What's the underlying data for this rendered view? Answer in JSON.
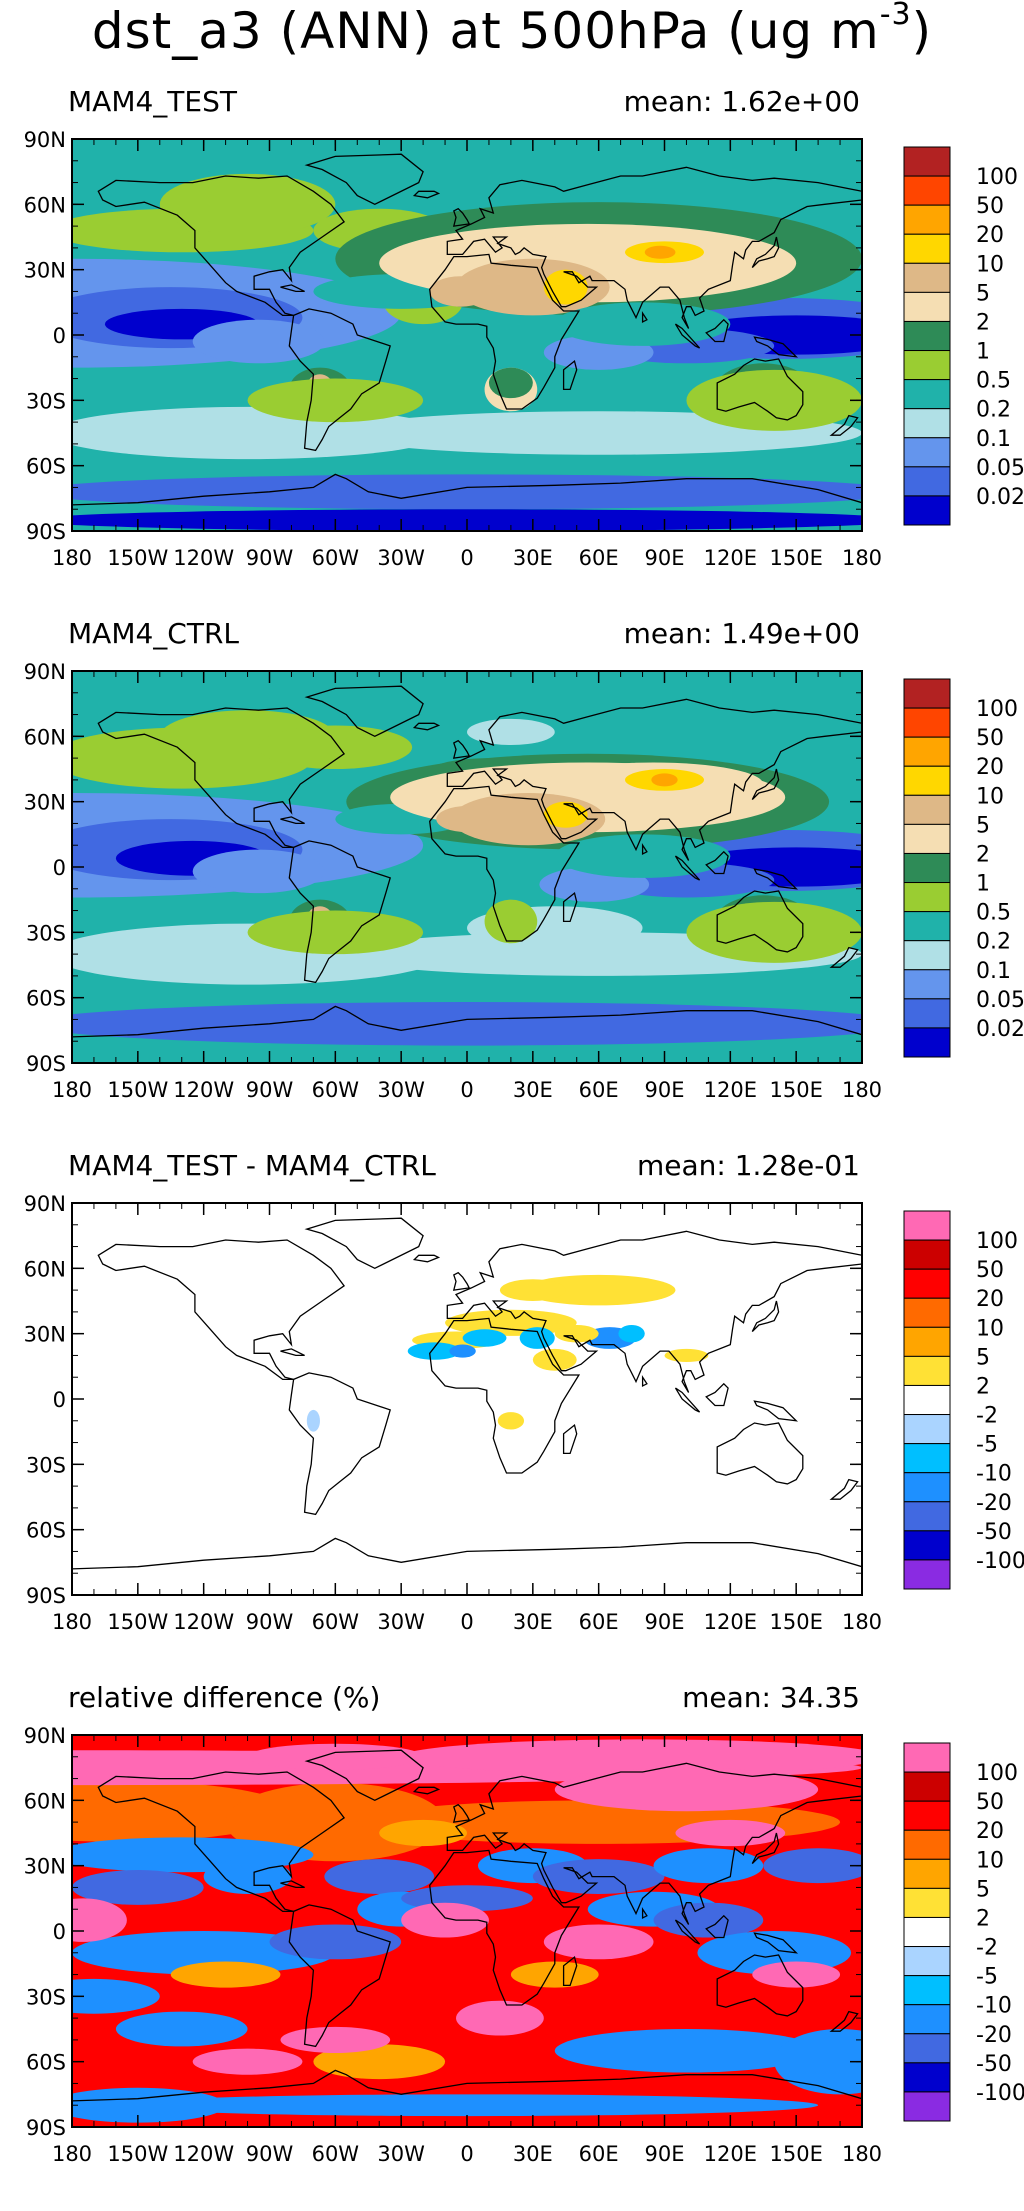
{
  "figure": {
    "title_main": "dst_a3 (ANN) at 500hPa (ug m",
    "title_sup": "-3",
    "title_end": ")"
  },
  "axes": {
    "lat_labels": [
      "90N",
      "60N",
      "30N",
      "0",
      "30S",
      "60S",
      "90S"
    ],
    "lon_labels": [
      "180",
      "150W",
      "120W",
      "90W",
      "60W",
      "30W",
      "0",
      "30E",
      "60E",
      "90E",
      "120E",
      "150E",
      "180"
    ]
  },
  "panels": [
    {
      "title": "MAM4_TEST",
      "mean": "mean: 1.62e+00",
      "scheme": "abs",
      "legend_labels": [
        "100",
        "50",
        "20",
        "10",
        "5",
        "2",
        "1",
        "0.5",
        "0.2",
        "0.1",
        "0.05",
        "0.02"
      ],
      "legend_colors": [
        "#b22222",
        "#ff4500",
        "#ffa500",
        "#ffd700",
        "#deb887",
        "#f5deb3",
        "#2e8b57",
        "#9acd32",
        "#20b2aa",
        "#b0e0e6",
        "#6495ed",
        "#4169e1",
        "#0000cd"
      ]
    },
    {
      "title": "MAM4_CTRL",
      "mean": "mean: 1.49e+00",
      "scheme": "abs",
      "legend_labels": [
        "100",
        "50",
        "20",
        "10",
        "5",
        "2",
        "1",
        "0.5",
        "0.2",
        "0.1",
        "0.05",
        "0.02"
      ],
      "legend_colors": [
        "#b22222",
        "#ff4500",
        "#ffa500",
        "#ffd700",
        "#deb887",
        "#f5deb3",
        "#2e8b57",
        "#9acd32",
        "#20b2aa",
        "#b0e0e6",
        "#6495ed",
        "#4169e1",
        "#0000cd"
      ]
    },
    {
      "title": "MAM4_TEST - MAM4_CTRL",
      "mean": "mean: 1.28e-01",
      "scheme": "diff",
      "legend_labels": [
        "100",
        "50",
        "20",
        "10",
        "5",
        "2",
        "-2",
        "-5",
        "-10",
        "-20",
        "-50",
        "-100"
      ],
      "legend_colors": [
        "#ff69b4",
        "#cc0000",
        "#ff0000",
        "#ff6a00",
        "#ffa500",
        "#ffe135",
        "#ffffff",
        "#aad4ff",
        "#00bfff",
        "#1e90ff",
        "#4169e1",
        "#0000cd",
        "#8a2be2"
      ]
    },
    {
      "title": "relative difference (%)",
      "mean": "mean: 34.35",
      "scheme": "rel",
      "legend_labels": [
        "100",
        "50",
        "20",
        "10",
        "5",
        "2",
        "-2",
        "-5",
        "-10",
        "-20",
        "-50",
        "-100"
      ],
      "legend_colors": [
        "#ff69b4",
        "#cc0000",
        "#ff0000",
        "#ff6a00",
        "#ffa500",
        "#ffe135",
        "#ffffff",
        "#aad4ff",
        "#00bfff",
        "#1e90ff",
        "#4169e1",
        "#0000cd",
        "#8a2be2"
      ]
    }
  ]
}
